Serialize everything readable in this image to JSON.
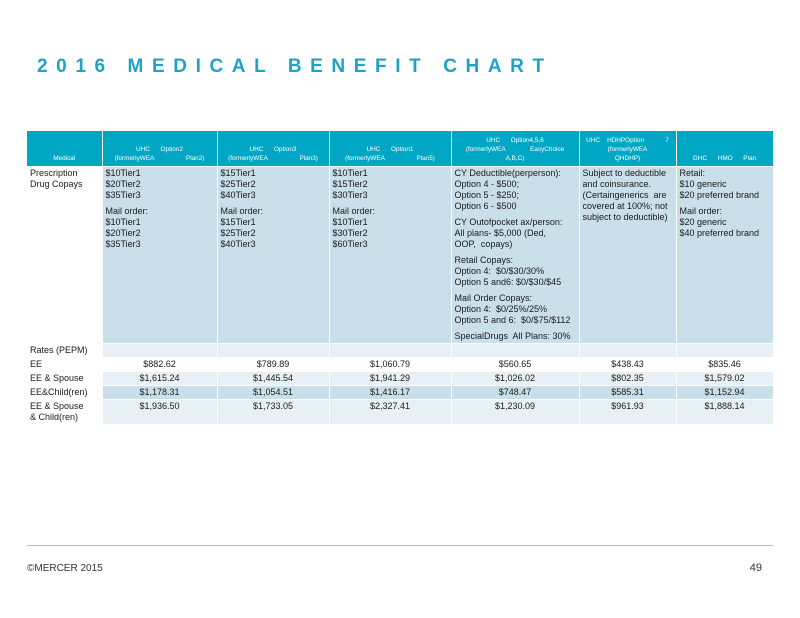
{
  "title": "2016 MEDICAL BENEFIT CHART",
  "table": {
    "headers": [
      [
        "Medical"
      ],
      [
        "UHC      Option2",
        "(formerlyWEA                  Plan2)"
      ],
      [
        "UHC      Option3",
        "(formerlyWEA                  Plan3)"
      ],
      [
        "UHC      Option1",
        "(formerlyWEA                  Plan5)"
      ],
      [
        "UHC      Option4,5,6",
        "(formerlyWEA              EasyChoice",
        "A,B,C)"
      ],
      [
        "UHC    HDHPOption            7",
        "(formerlyWEA",
        "QHDHP)"
      ],
      [
        "GHC      HMO      Plan"
      ]
    ],
    "rx_label": [
      "Prescription",
      "Drug Copays"
    ],
    "rx_cells": [
      [
        [
          "$10Tier1",
          "$20Tier2",
          "$35Tier3"
        ],
        [
          "Mail order:",
          "$10Tier1",
          "$20Tier2",
          "$35Tier3"
        ]
      ],
      [
        [
          "$15Tier1",
          "$25Tier2",
          "$40Tier3"
        ],
        [
          "Mail order:",
          "$15Tier1",
          "$25Tier2",
          "$40Tier3"
        ]
      ],
      [
        [
          "$10Tier1",
          "$15Tier2",
          "$30Tier3"
        ],
        [
          "Mail order:",
          "$10Tier1",
          "$30Tier2",
          "$60Tier3"
        ]
      ],
      [
        [
          "CY Deductible(perperson):",
          "Option 4 - $500;",
          "Option 5 - $250;",
          "Option 6 - $500"
        ],
        [
          "CY Outofpocket ax/person:",
          "All plans- $5,000 (Ded,",
          "OOP,  copays)"
        ],
        [
          "Retail Copays:",
          "Option 4:  $0/$30/30%",
          "Option 5 and6: $0/$30/$45"
        ],
        [
          "Mail Order Copays:",
          "Option 4:  $0/25%/25%",
          "Option 5 and 6:  $0/$75/$112"
        ],
        [
          "SpecialDrugs  All Plans: 30%"
        ]
      ],
      [
        [
          "Subject to deductible",
          "and coinsurance.",
          "(Certaingenerics  are",
          "covered at 100%; not",
          "subject to deductible)"
        ]
      ],
      [
        [
          "Retail:",
          "$10 generic",
          "$20 preferred brand"
        ],
        [
          "Mail order:",
          "$20 generic",
          "$40 preferred brand"
        ]
      ]
    ],
    "rates_label": "Rates (PEPM)",
    "rows": [
      {
        "label": [
          "EE"
        ],
        "values": [
          "$882.62",
          "$789.89",
          "$1,060.79",
          "$560.65",
          "$438.43",
          "$835.46"
        ]
      },
      {
        "label": [
          "EE & Spouse"
        ],
        "values": [
          "$1,615.24",
          "$1,445.54",
          "$1,941.29",
          "$1,026.02",
          "$802.35",
          "$1,579.02"
        ]
      },
      {
        "label": [
          "EE&Child(ren)"
        ],
        "values": [
          "$1,178.31",
          "$1,054.51",
          "$1,416.17",
          "$748.47",
          "$585.31",
          "$1,152.94"
        ]
      },
      {
        "label": [
          "EE & Spouse",
          "& Child(ren)"
        ],
        "values": [
          "$1,936.50",
          "$1,733.05",
          "$2,327.41",
          "$1,230.09",
          "$961.93",
          "$1,888.14"
        ]
      }
    ]
  },
  "footer": {
    "copyright": "©MERCER  2015",
    "page": "49"
  }
}
